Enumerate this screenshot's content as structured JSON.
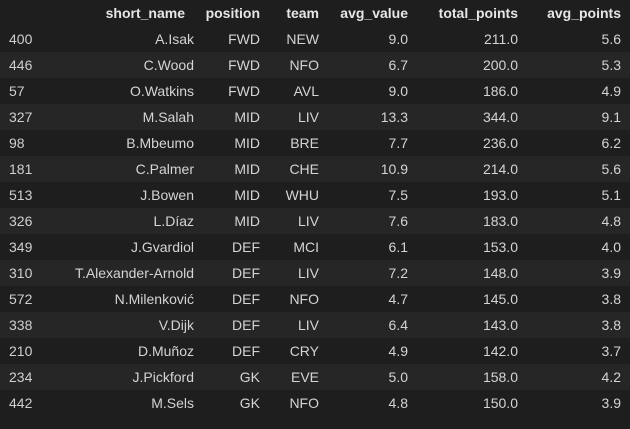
{
  "columns": {
    "index": "",
    "short_name": "short_name",
    "position": "position",
    "team": "team",
    "avg_value": "avg_value",
    "total_points": "total_points",
    "avg_points": "avg_points"
  },
  "rows": [
    {
      "index": "400",
      "short_name": "A.Isak",
      "position": "FWD",
      "team": "NEW",
      "avg_value": "9.0",
      "total_points": "211.0",
      "avg_points": "5.6"
    },
    {
      "index": "446",
      "short_name": "C.Wood",
      "position": "FWD",
      "team": "NFO",
      "avg_value": "6.7",
      "total_points": "200.0",
      "avg_points": "5.3"
    },
    {
      "index": "57",
      "short_name": "O.Watkins",
      "position": "FWD",
      "team": "AVL",
      "avg_value": "9.0",
      "total_points": "186.0",
      "avg_points": "4.9"
    },
    {
      "index": "327",
      "short_name": "M.Salah",
      "position": "MID",
      "team": "LIV",
      "avg_value": "13.3",
      "total_points": "344.0",
      "avg_points": "9.1"
    },
    {
      "index": "98",
      "short_name": "B.Mbeumo",
      "position": "MID",
      "team": "BRE",
      "avg_value": "7.7",
      "total_points": "236.0",
      "avg_points": "6.2"
    },
    {
      "index": "181",
      "short_name": "C.Palmer",
      "position": "MID",
      "team": "CHE",
      "avg_value": "10.9",
      "total_points": "214.0",
      "avg_points": "5.6"
    },
    {
      "index": "513",
      "short_name": "J.Bowen",
      "position": "MID",
      "team": "WHU",
      "avg_value": "7.5",
      "total_points": "193.0",
      "avg_points": "5.1"
    },
    {
      "index": "326",
      "short_name": "L.Díaz",
      "position": "MID",
      "team": "LIV",
      "avg_value": "7.6",
      "total_points": "183.0",
      "avg_points": "4.8"
    },
    {
      "index": "349",
      "short_name": "J.Gvardiol",
      "position": "DEF",
      "team": "MCI",
      "avg_value": "6.1",
      "total_points": "153.0",
      "avg_points": "4.0"
    },
    {
      "index": "310",
      "short_name": "T.Alexander-Arnold",
      "position": "DEF",
      "team": "LIV",
      "avg_value": "7.2",
      "total_points": "148.0",
      "avg_points": "3.9"
    },
    {
      "index": "572",
      "short_name": "N.Milenković",
      "position": "DEF",
      "team": "NFO",
      "avg_value": "4.7",
      "total_points": "145.0",
      "avg_points": "3.8"
    },
    {
      "index": "338",
      "short_name": "V.Dijk",
      "position": "DEF",
      "team": "LIV",
      "avg_value": "6.4",
      "total_points": "143.0",
      "avg_points": "3.8"
    },
    {
      "index": "210",
      "short_name": "D.Muñoz",
      "position": "DEF",
      "team": "CRY",
      "avg_value": "4.9",
      "total_points": "142.0",
      "avg_points": "3.7"
    },
    {
      "index": "234",
      "short_name": "J.Pickford",
      "position": "GK",
      "team": "EVE",
      "avg_value": "5.0",
      "total_points": "158.0",
      "avg_points": "4.2"
    },
    {
      "index": "442",
      "short_name": "M.Sels",
      "position": "GK",
      "team": "NFO",
      "avg_value": "4.8",
      "total_points": "150.0",
      "avg_points": "3.9"
    }
  ]
}
